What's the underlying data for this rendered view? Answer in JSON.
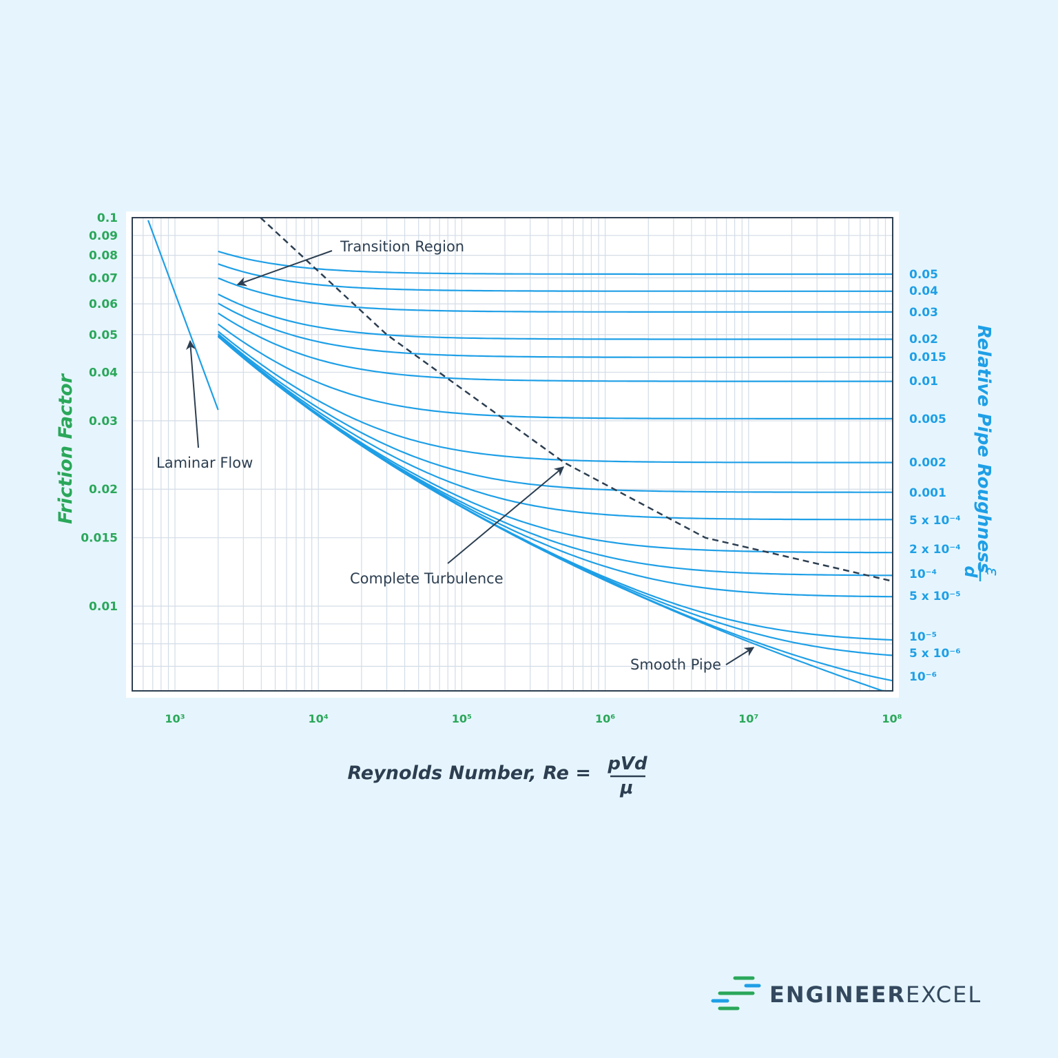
{
  "chart_data": {
    "type": "line",
    "title": "",
    "xlabel": "Reynolds Number, Re =",
    "xlabel_fraction": {
      "numerator": "pVd",
      "denominator": "μ"
    },
    "ylabel": "Friction Factor",
    "right_label": "Relative Pipe Roughness",
    "right_label_fraction": {
      "numerator": "ε",
      "denominator": "d"
    },
    "x_scale": "log",
    "y_scale": "log",
    "xlim": [
      500,
      100000000
    ],
    "ylim": [
      0.006,
      0.1
    ],
    "grid": true,
    "x_ticks": [
      {
        "value": 1000,
        "label": "10³"
      },
      {
        "value": 10000,
        "label": "10⁴"
      },
      {
        "value": 100000,
        "label": "10⁵"
      },
      {
        "value": 1000000,
        "label": "10⁶"
      },
      {
        "value": 10000000,
        "label": "10⁷"
      },
      {
        "value": 100000000,
        "label": "10⁸"
      }
    ],
    "y_ticks": [
      {
        "value": 0.1,
        "label": "0.1"
      },
      {
        "value": 0.09,
        "label": "0.09"
      },
      {
        "value": 0.08,
        "label": "0.08"
      },
      {
        "value": 0.07,
        "label": "0.07"
      },
      {
        "value": 0.06,
        "label": "0.06"
      },
      {
        "value": 0.05,
        "label": "0.05"
      },
      {
        "value": 0.04,
        "label": "0.04"
      },
      {
        "value": 0.03,
        "label": "0.03"
      },
      {
        "value": 0.02,
        "label": "0.02"
      },
      {
        "value": 0.015,
        "label": "0.015"
      },
      {
        "value": 0.01,
        "label": "0.01"
      }
    ],
    "laminar": {
      "formula": "f = 64/Re",
      "re_range": [
        650,
        2000
      ]
    },
    "turbulent_re_range": [
      2000,
      100000000
    ],
    "roughness_series": [
      {
        "value": 0.05,
        "label": "0.05"
      },
      {
        "value": 0.04,
        "label": "0.04"
      },
      {
        "value": 0.03,
        "label": "0.03"
      },
      {
        "value": 0.02,
        "label": "0.02"
      },
      {
        "value": 0.015,
        "label": "0.015"
      },
      {
        "value": 0.01,
        "label": "0.01"
      },
      {
        "value": 0.005,
        "label": "0.005"
      },
      {
        "value": 0.002,
        "label": "0.002"
      },
      {
        "value": 0.001,
        "label": "0.001"
      },
      {
        "value": 0.0005,
        "label": "5 x 10⁻⁴"
      },
      {
        "value": 0.0002,
        "label": "2 x 10⁻⁴"
      },
      {
        "value": 0.0001,
        "label": "10⁻⁴"
      },
      {
        "value": 5e-05,
        "label": "5 x 10⁻⁵"
      },
      {
        "value": 1e-05,
        "label": "10⁻⁵"
      },
      {
        "value": 5e-06,
        "label": "5 x 10⁻⁶"
      },
      {
        "value": 1e-06,
        "label": "10⁻⁶"
      },
      {
        "value": 0,
        "label": ""
      }
    ],
    "complete_turbulence_boundary": [
      {
        "re": 3950,
        "f": 0.1
      },
      {
        "re": 30000,
        "f": 0.05
      },
      {
        "re": 520000,
        "f": 0.0234
      },
      {
        "re": 5000000,
        "f": 0.015
      },
      {
        "re": 100000000,
        "f": 0.0116
      }
    ],
    "annotations": [
      {
        "text": "Transition Region"
      },
      {
        "text": "Laminar Flow"
      },
      {
        "text": "Complete Turbulence"
      },
      {
        "text": "Smooth Pipe"
      }
    ],
    "colors": {
      "curves": "#1e9fe6",
      "axis_text": "#2aa75a",
      "annotation": "#2c3e50",
      "background": "#e6f5fd"
    }
  },
  "logo": {
    "text_bold": "ENGINEER",
    "text_light": "EXCEL"
  }
}
